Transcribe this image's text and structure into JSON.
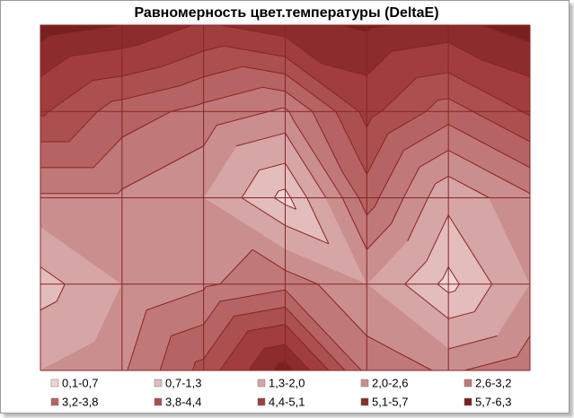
{
  "chart_data": {
    "type": "contour",
    "title": "Равномерность цвет.температуры (DeltaE)",
    "z": [
      [
        6.0,
        5.7,
        5.0,
        5.5,
        5.8,
        5.5,
        6.0
      ],
      [
        4.5,
        3.5,
        3.0,
        2.5,
        4.6,
        3.5,
        4.5
      ],
      [
        2.5,
        2.5,
        2.0,
        0.5,
        3.5,
        1.5,
        2.5
      ],
      [
        1.0,
        2.0,
        2.5,
        3.0,
        2.0,
        0.5,
        2.0
      ],
      [
        2.0,
        2.5,
        4.0,
        6.0,
        3.0,
        2.5,
        3.0
      ]
    ],
    "levels": [
      0.1,
      0.7,
      1.3,
      2.0,
      2.6,
      3.2,
      3.8,
      4.4,
      5.1,
      5.7,
      6.3
    ],
    "bands": [
      {
        "label": "0,1-0,7",
        "color": "#f0d4d4"
      },
      {
        "label": "0,7-1,3",
        "color": "#e3bcbc"
      },
      {
        "label": "1,3-2,0",
        "color": "#d6a5a5"
      },
      {
        "label": "2,0-2,6",
        "color": "#ca8e8e"
      },
      {
        "label": "2,6-3,2",
        "color": "#c07878"
      },
      {
        "label": "3,2-3,8",
        "color": "#b66363"
      },
      {
        "label": "3,8-4,4",
        "color": "#ab4f4f"
      },
      {
        "label": "4,4-5,1",
        "color": "#a03d3d"
      },
      {
        "label": "5,1-5,7",
        "color": "#8c2c2c"
      },
      {
        "label": "5,7-6,3",
        "color": "#782020"
      }
    ],
    "line_color": "#8a2424",
    "grid": true
  }
}
